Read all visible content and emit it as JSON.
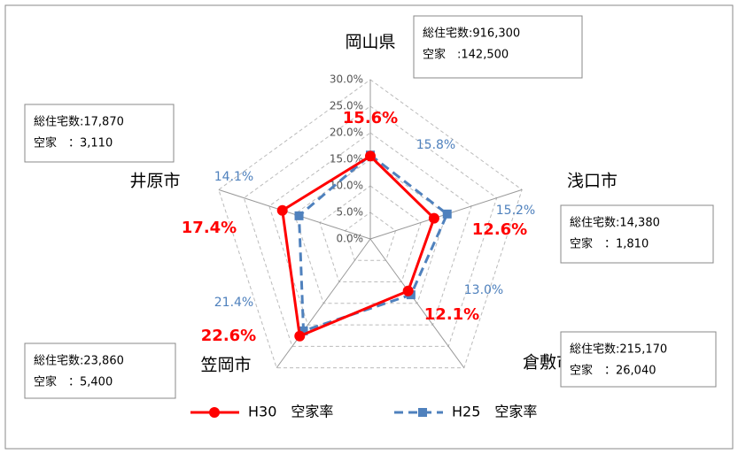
{
  "chart_data": {
    "type": "radar",
    "categories": [
      "岡山県",
      "浅口市",
      "倉敷市",
      "笠岡市",
      "井原市"
    ],
    "series": [
      {
        "name": "H30　空家率",
        "color": "#ff0000",
        "values": [
          15.6,
          12.6,
          12.1,
          22.6,
          17.4
        ],
        "value_labels": [
          "15.6%",
          "12.6%",
          "12.1%",
          "22.6%",
          "17.4%"
        ]
      },
      {
        "name": "H25　空家率",
        "color": "#4f81bd",
        "values": [
          15.8,
          15.2,
          13.0,
          21.4,
          14.1
        ],
        "value_labels": [
          "15.8%",
          "15.2%",
          "13.0%",
          "21.4%",
          "14.1%"
        ]
      }
    ],
    "ylim": [
      0,
      30
    ],
    "yticks": [
      {
        "value": 0,
        "label": "0.0%"
      },
      {
        "value": 5,
        "label": "5.0%"
      },
      {
        "value": 10,
        "label": "10.0%"
      },
      {
        "value": 15,
        "label": "15.0%"
      },
      {
        "value": 20,
        "label": "20.0%"
      },
      {
        "value": 25,
        "label": "25.0%"
      },
      {
        "value": 30,
        "label": "30.0%"
      }
    ],
    "grid": true,
    "annotations": [
      {
        "lines": [
          "総住宅数:916,300",
          "空家　:142,500"
        ]
      },
      {
        "lines": [
          "総住宅数:14,380",
          "空家　：1,810"
        ]
      },
      {
        "lines": [
          "総住宅数:215,170",
          "空家　：26,040"
        ]
      },
      {
        "lines": [
          "総住宅数:23,860",
          "空家　：5,400"
        ]
      },
      {
        "lines": [
          "総住宅数:17,870",
          "空家　：3,110"
        ]
      }
    ]
  }
}
